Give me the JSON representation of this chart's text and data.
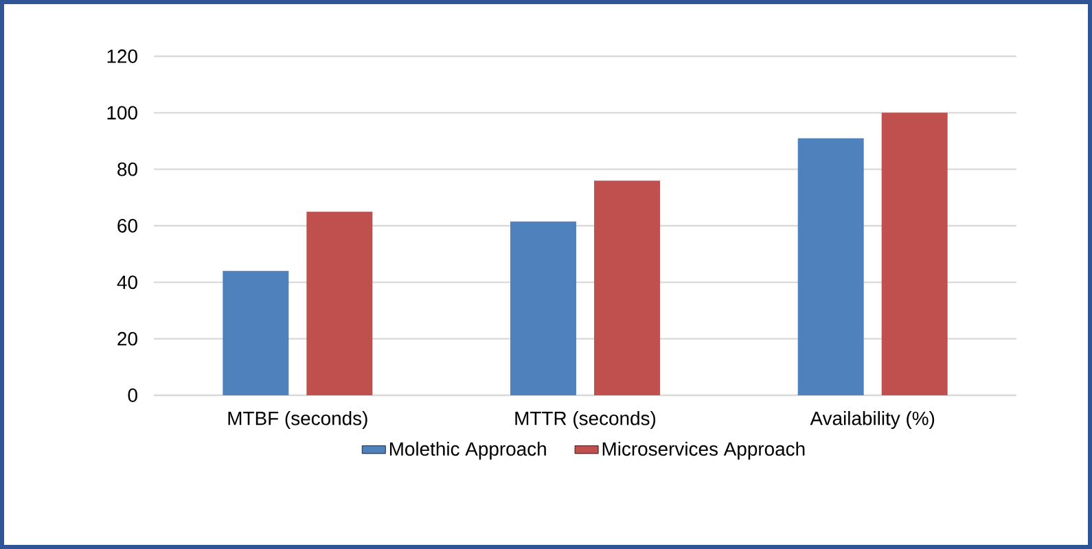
{
  "chart_data": {
    "type": "bar",
    "categories": [
      "MTBF (seconds)",
      "MTTR (seconds)",
      "Availability (%)"
    ],
    "series": [
      {
        "name": "Molethic Approach",
        "color": "#4f81bd",
        "values": [
          44,
          61.5,
          91
        ]
      },
      {
        "name": "Microservices Approach",
        "color": "#c0504d",
        "values": [
          65,
          76,
          100
        ]
      }
    ],
    "ylim": [
      0,
      120
    ],
    "yticks": [
      0,
      20,
      40,
      60,
      80,
      100,
      120
    ],
    "grid": "y",
    "legend": "bottom"
  }
}
